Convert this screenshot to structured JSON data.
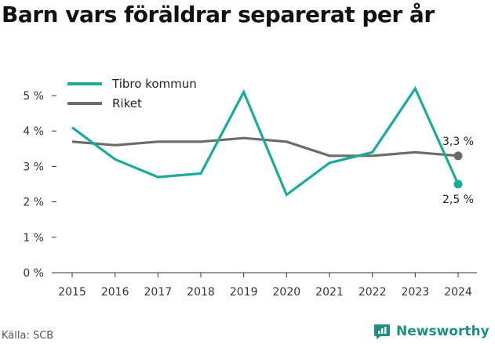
{
  "title": "Barn vars föräldrar separerat per år",
  "source": "Källa: SCB",
  "brand": {
    "name": "Newsworthy",
    "icon": "newsworthy-logo-icon"
  },
  "colors": {
    "tibro": "#1aab9b",
    "riket": "#6b6b6e",
    "brand": "#1f8f84"
  },
  "chart_data": {
    "type": "line",
    "title": "Barn vars föräldrar separerat per år",
    "xlabel": "",
    "ylabel": "",
    "x": [
      "2015",
      "2016",
      "2017",
      "2018",
      "2019",
      "2020",
      "2021",
      "2022",
      "2023",
      "2024"
    ],
    "ylim": [
      0,
      5
    ],
    "yticks": [
      0,
      1,
      2,
      3,
      4,
      5
    ],
    "ytick_labels": [
      "0 %",
      "1 %",
      "2 %",
      "3 %",
      "4 %",
      "5 %"
    ],
    "grid": false,
    "legend_position": "top-left",
    "series": [
      {
        "name": "Tibro kommun",
        "color": "#1aab9b",
        "values": [
          4.1,
          3.2,
          2.7,
          2.8,
          5.1,
          2.2,
          3.1,
          3.4,
          5.2,
          2.5
        ],
        "end_label": "2,5 %"
      },
      {
        "name": "Riket",
        "color": "#6b6b6e",
        "values": [
          3.7,
          3.6,
          3.7,
          3.7,
          3.8,
          3.7,
          3.3,
          3.3,
          3.4,
          3.3
        ],
        "end_label": "3,3 %"
      }
    ]
  }
}
